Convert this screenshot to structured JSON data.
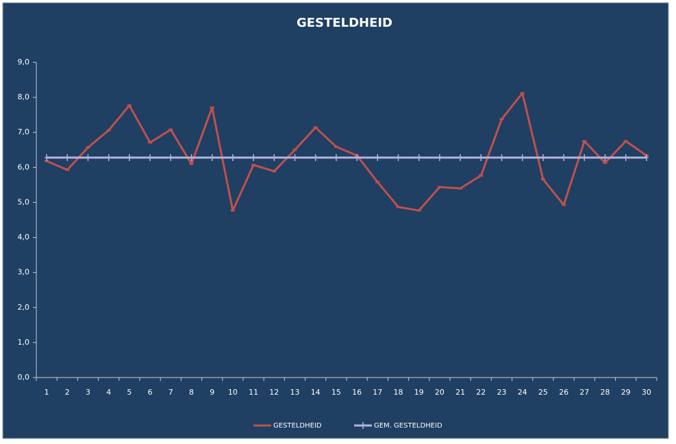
{
  "chart_data": {
    "type": "line",
    "title": "GESTELDHEID",
    "categories": [
      "1",
      "2",
      "3",
      "4",
      "5",
      "6",
      "7",
      "8",
      "9",
      "10",
      "11",
      "12",
      "13",
      "14",
      "15",
      "16",
      "17",
      "18",
      "19",
      "20",
      "21",
      "22",
      "23",
      "24",
      "25",
      "26",
      "27",
      "28",
      "29",
      "30"
    ],
    "series": [
      {
        "name": "GESTELDHEID",
        "color": "#c0504d",
        "values": [
          6.18,
          5.93,
          6.57,
          7.06,
          7.77,
          6.71,
          7.08,
          6.1,
          7.71,
          4.77,
          6.07,
          5.89,
          6.5,
          7.14,
          6.59,
          6.34,
          5.58,
          4.87,
          4.77,
          5.44,
          5.4,
          5.77,
          7.38,
          8.12,
          5.66,
          4.93,
          6.75,
          6.13,
          6.75,
          6.34
        ]
      },
      {
        "name": "GEM. GESTELDHEID",
        "color": "#b4b4dc",
        "values": [
          6.28,
          6.28,
          6.28,
          6.28,
          6.28,
          6.28,
          6.28,
          6.28,
          6.28,
          6.28,
          6.28,
          6.28,
          6.28,
          6.28,
          6.28,
          6.28,
          6.28,
          6.28,
          6.28,
          6.28,
          6.28,
          6.28,
          6.28,
          6.28,
          6.28,
          6.28,
          6.28,
          6.28,
          6.28,
          6.28
        ]
      }
    ],
    "ylim": [
      0,
      9
    ],
    "yticks": [
      {
        "value": 0,
        "label": "0,0"
      },
      {
        "value": 1,
        "label": "1,0"
      },
      {
        "value": 2,
        "label": "2,0"
      },
      {
        "value": 3,
        "label": "3,0"
      },
      {
        "value": 4,
        "label": "4,0"
      },
      {
        "value": 5,
        "label": "5,0"
      },
      {
        "value": 6,
        "label": "6,0"
      },
      {
        "value": 7,
        "label": "7,0"
      },
      {
        "value": 8,
        "label": "8,0"
      },
      {
        "value": 9,
        "label": "9,0"
      }
    ],
    "grid": false,
    "legend": "bottom"
  }
}
